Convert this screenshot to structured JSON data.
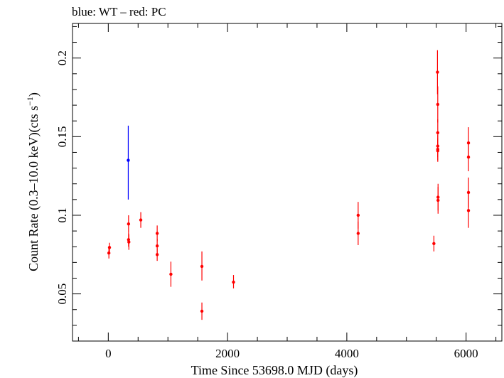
{
  "chart_data": {
    "type": "scatter",
    "title": "blue: WT – red: PC",
    "xlabel": "Time Since 53698.0 MJD (days)",
    "ylabel_main": "Count Rate (0.3–10.0 keV)(cts s",
    "ylabel_sup": "−1",
    "ylabel_close": ")",
    "xlim": [
      -600,
      6600
    ],
    "ylim": [
      0.02,
      0.222
    ],
    "x_ticks": [
      0,
      2000,
      4000,
      6000
    ],
    "x_tick_labels": [
      "0",
      "2000",
      "4000",
      "6000"
    ],
    "y_ticks": [
      0.05,
      0.1,
      0.15,
      0.2
    ],
    "y_tick_labels": [
      "0.05",
      "0.1",
      "0.15",
      "0.2"
    ],
    "grid": false,
    "series": [
      {
        "color": "#0000ff",
        "points": [
          {
            "x": 335,
            "y": 0.135,
            "lo": 0.11,
            "hi": 0.157
          }
        ]
      },
      {
        "color": "#ff0000",
        "points": [
          {
            "x": 10,
            "y": 0.076,
            "lo": 0.0725,
            "hi": 0.0795
          },
          {
            "x": 20,
            "y": 0.0795,
            "lo": 0.0765,
            "hi": 0.0825
          },
          {
            "x": 340,
            "y": 0.0945,
            "lo": 0.089,
            "hi": 0.1
          },
          {
            "x": 340,
            "y": 0.0845,
            "lo": 0.08,
            "hi": 0.089
          },
          {
            "x": 345,
            "y": 0.083,
            "lo": 0.078,
            "hi": 0.088
          },
          {
            "x": 545,
            "y": 0.097,
            "lo": 0.092,
            "hi": 0.102
          },
          {
            "x": 820,
            "y": 0.0885,
            "lo": 0.0835,
            "hi": 0.0935
          },
          {
            "x": 820,
            "y": 0.0805,
            "lo": 0.076,
            "hi": 0.085
          },
          {
            "x": 820,
            "y": 0.075,
            "lo": 0.071,
            "hi": 0.079
          },
          {
            "x": 1050,
            "y": 0.0625,
            "lo": 0.0545,
            "hi": 0.0705
          },
          {
            "x": 1570,
            "y": 0.0675,
            "lo": 0.0585,
            "hi": 0.077
          },
          {
            "x": 1570,
            "y": 0.039,
            "lo": 0.0335,
            "hi": 0.0445
          },
          {
            "x": 2100,
            "y": 0.0575,
            "lo": 0.0535,
            "hi": 0.062
          },
          {
            "x": 4190,
            "y": 0.1,
            "lo": 0.0915,
            "hi": 0.1085
          },
          {
            "x": 4190,
            "y": 0.0885,
            "lo": 0.081,
            "hi": 0.096
          },
          {
            "x": 5460,
            "y": 0.082,
            "lo": 0.077,
            "hi": 0.087
          },
          {
            "x": 5520,
            "y": 0.191,
            "lo": 0.177,
            "hi": 0.205
          },
          {
            "x": 5525,
            "y": 0.1705,
            "lo": 0.159,
            "hi": 0.182
          },
          {
            "x": 5525,
            "y": 0.1525,
            "lo": 0.144,
            "hi": 0.161
          },
          {
            "x": 5525,
            "y": 0.144,
            "lo": 0.137,
            "hi": 0.151
          },
          {
            "x": 5525,
            "y": 0.142,
            "lo": 0.135,
            "hi": 0.149
          },
          {
            "x": 5525,
            "y": 0.141,
            "lo": 0.134,
            "hi": 0.148
          },
          {
            "x": 5530,
            "y": 0.1115,
            "lo": 0.103,
            "hi": 0.12
          },
          {
            "x": 5530,
            "y": 0.1095,
            "lo": 0.101,
            "hi": 0.118
          },
          {
            "x": 6040,
            "y": 0.146,
            "lo": 0.136,
            "hi": 0.156
          },
          {
            "x": 6040,
            "y": 0.137,
            "lo": 0.128,
            "hi": 0.146
          },
          {
            "x": 6040,
            "y": 0.1145,
            "lo": 0.105,
            "hi": 0.124
          },
          {
            "x": 6040,
            "y": 0.103,
            "lo": 0.092,
            "hi": 0.114
          }
        ]
      }
    ]
  }
}
